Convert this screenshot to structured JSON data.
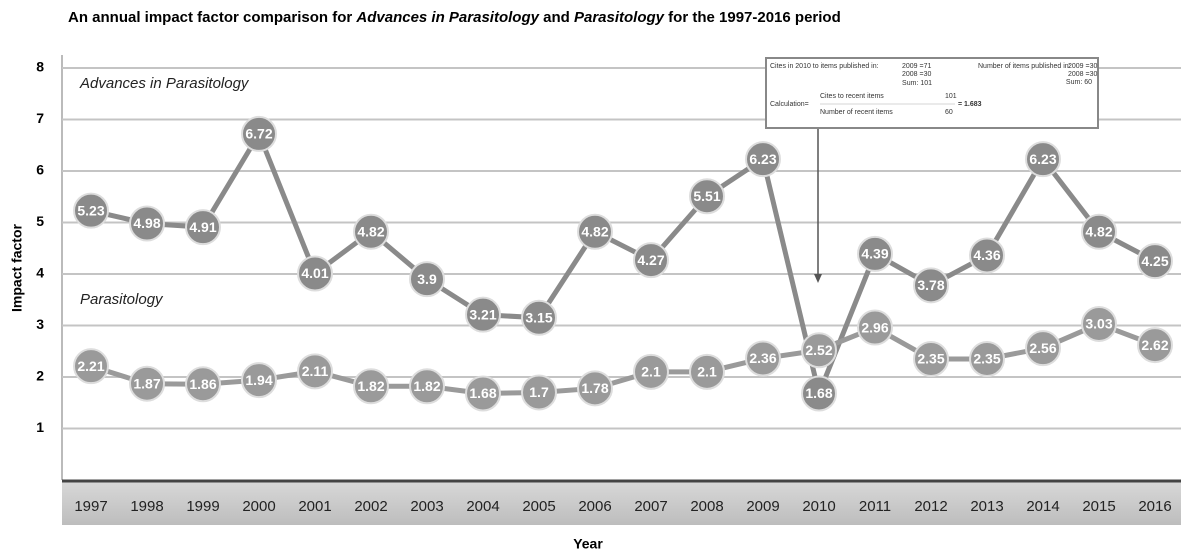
{
  "chart_data": {
    "type": "line",
    "title": [
      "An annual impact factor comparison for ",
      "Advances in Parasitology",
      " and ",
      "Parasitology",
      " for the 1997-2016 period"
    ],
    "xlabel": "Year",
    "ylabel": "Impact factor",
    "categories": [
      "1997",
      "1998",
      "1999",
      "2000",
      "2001",
      "2002",
      "2003",
      "2004",
      "2005",
      "2006",
      "2007",
      "2008",
      "2009",
      "2010",
      "2011",
      "2012",
      "2013",
      "2014",
      "2015",
      "2016"
    ],
    "series": [
      {
        "name": "Advances in Parasitology",
        "color": "#8a8a8a",
        "values": [
          5.23,
          4.98,
          4.91,
          6.72,
          4.01,
          4.82,
          3.9,
          3.21,
          3.15,
          4.82,
          4.27,
          5.51,
          6.23,
          1.68,
          4.39,
          3.78,
          4.36,
          6.23,
          4.82,
          4.25
        ]
      },
      {
        "name": "Parasitology",
        "color": "#9a9a9a",
        "values": [
          2.21,
          1.87,
          1.86,
          1.94,
          2.11,
          1.82,
          1.82,
          1.68,
          1.7,
          1.78,
          2.1,
          2.1,
          2.36,
          2.52,
          2.96,
          2.35,
          2.35,
          2.56,
          3.03,
          2.62
        ]
      }
    ],
    "ylim": [
      0,
      8
    ],
    "yticks": [
      1,
      2,
      3,
      4,
      5,
      6,
      7,
      8
    ],
    "grid": true,
    "inset": [
      "Cites in 2010 to items published in:",
      "2009 =71",
      "2008 =30",
      "Sum: 101",
      "Number of items published in:",
      "2009 =30",
      "2008 =30",
      "Sum: 60",
      "Calculation=",
      "Cites to recent items",
      "101",
      "= 1.683",
      "Number of recent items",
      "60"
    ]
  }
}
